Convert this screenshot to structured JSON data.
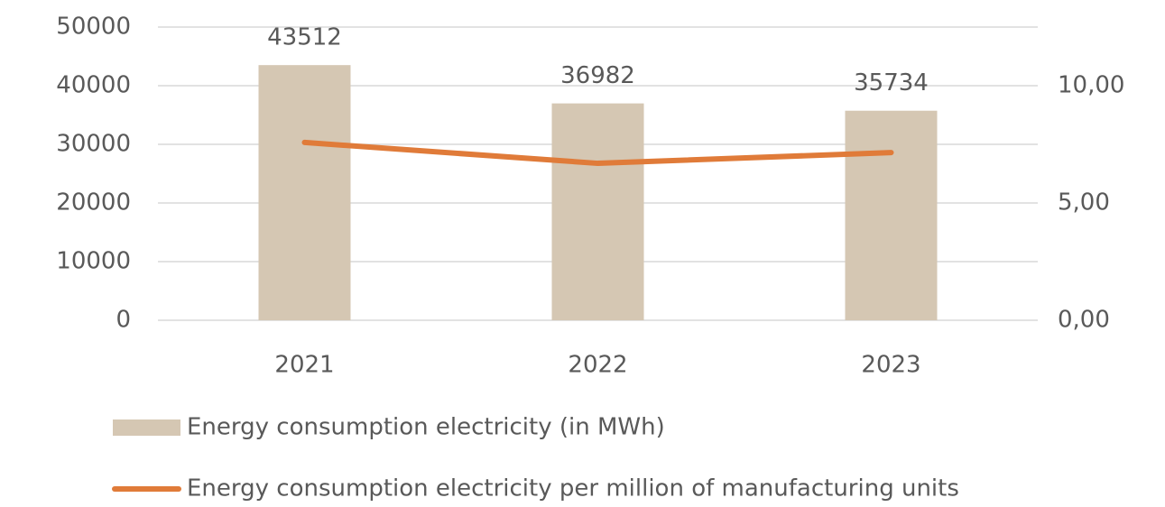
{
  "chart_data": {
    "type": "bar-line",
    "categories": [
      "2021",
      "2022",
      "2023"
    ],
    "series": [
      {
        "name": "Energy consumption electricity (in MWh)",
        "type": "bar",
        "color": "#d5c7b3",
        "values": [
          43512,
          36982,
          35734
        ]
      },
      {
        "name": "Energy consumption electricity per million of manufacturing units",
        "type": "line",
        "axis": "y2",
        "color": "#e07b39",
        "values": [
          7.58,
          6.69,
          7.15
        ]
      }
    ],
    "ylim": [
      0,
      50000
    ],
    "yticks": [
      0,
      10000,
      20000,
      30000,
      40000,
      50000
    ],
    "y2lim": [
      0,
      12.5
    ],
    "y2ticks": [
      {
        "value": 0,
        "label": "0,00"
      },
      {
        "value": 5,
        "label": "5,00"
      },
      {
        "value": 10,
        "label": "10,00"
      }
    ],
    "grid": true,
    "legend": "bottom"
  }
}
